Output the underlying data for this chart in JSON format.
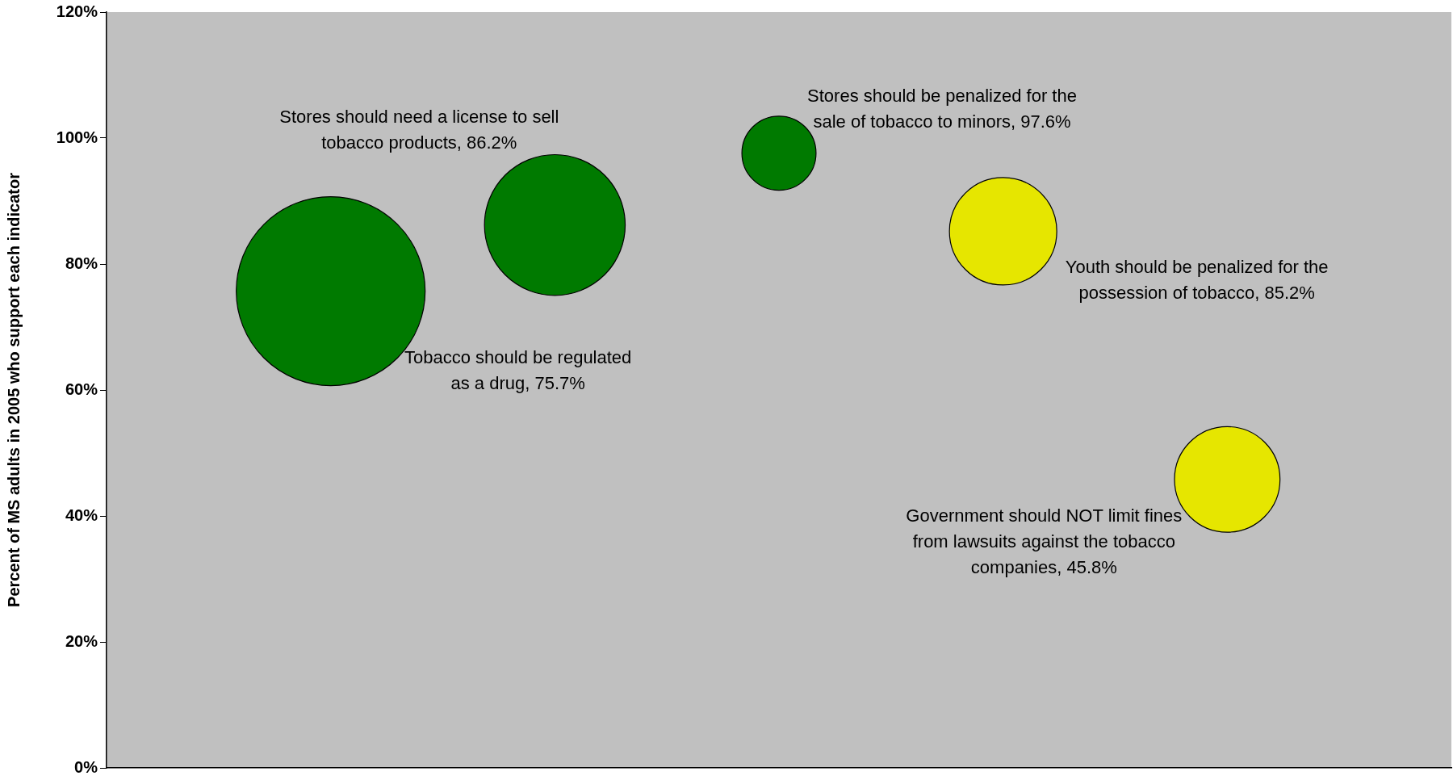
{
  "chart_data": {
    "type": "bubble",
    "ylabel": "Percent of MS adults in 2005 who support each indicator",
    "categories": [
      null,
      null,
      null,
      null,
      null,
      null,
      null
    ],
    "tick_labels": "y",
    "grid": false,
    "legend": false,
    "series": [
      {
        "colors": [
          null,
          "#007a00",
          "#007a00",
          "#007a00",
          "#e6e600",
          "#e6e600",
          null
        ],
        "values": [
          null,
          75.7,
          86.2,
          97.6,
          85.2,
          45.8,
          null
        ],
        "sizes": [
          null,
          1,
          0.555,
          0.154,
          0.323,
          0.312,
          null
        ],
        "value_labels": [
          null,
          "Tobacco should be regulated as a drug, 75.7%",
          "Stores should need a license to sell tobacco products, 86.2%",
          "Stores should be penalized for the sale of tobacco to minors, 97.6%",
          "Youth should be penalized for the possession of tobacco, 85.2%",
          "Government should NOT limit fines from lawsuits against the tobacco companies, 45.8%",
          null
        ]
      }
    ],
    "ylim": [
      0,
      120
    ],
    "yticks": [
      {
        "value": 0,
        "label": "0%"
      },
      {
        "value": 20,
        "label": "20%"
      },
      {
        "value": 40,
        "label": "40%"
      },
      {
        "value": 60,
        "label": "60%"
      },
      {
        "value": 80,
        "label": "80%"
      },
      {
        "value": 100,
        "label": "100%"
      },
      {
        "value": 120,
        "label": "120%"
      }
    ]
  }
}
